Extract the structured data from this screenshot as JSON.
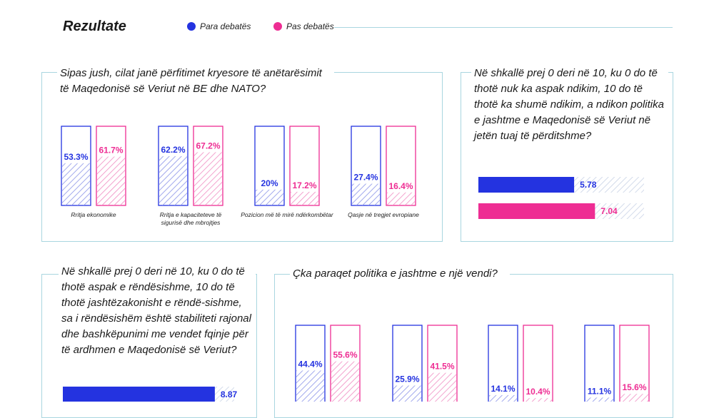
{
  "header": {
    "title": "Rezultate",
    "legend": [
      {
        "label": "Para debatës",
        "color": "#2433e0"
      },
      {
        "label": "Pas debatës",
        "color": "#ee2d93"
      }
    ]
  },
  "panels": {
    "benefits_question": "Sipas jush, cilat janë përfitimet kryesore të anëtarësimit të Maqedonisë së Veriut në BE dhe NATO?",
    "influence_question": "Në shkallë prej 0 deri në 10, ku 0 do të thotë nuk ka aspak ndikim, 10 do të thotë ka shumë ndikim, a ndikon politika e jashtme e Maqedonisë së Veriut në jetën tuaj të përditshme?",
    "stability_question": "Në shkallë prej 0 deri në 10, ku 0 do të thotë aspak e rëndësishme, 10 do të thotë jashtëzakonisht e rëndë-sishme, sa i rëndësishëm është stabiliteti rajonal dhe bashkëpunimi me vendet fqinje për të ardhmen e Maqedonisë së Veriut?",
    "foreign_policy_question": "Çka paraqet politika e jashtme e një vendi?"
  },
  "chart_data": [
    {
      "type": "bar",
      "categories": [
        "Rritja ekonomike",
        "Rritja e kapaciteteve të sigurisë dhe mbrojtjes",
        "Pozicion më të mirë ndërkombëtar",
        "Qasje në tregjet evropiane"
      ],
      "series": [
        {
          "name": "Para debatës",
          "values": [
            53.3,
            62.2,
            20,
            27.4
          ],
          "labels": [
            "53.3%",
            "62.2%",
            "20%",
            "27.4%"
          ],
          "color": "#2433e0"
        },
        {
          "name": "Pas debatës",
          "values": [
            61.7,
            67.2,
            17.2,
            16.4
          ],
          "labels": [
            "61.7%",
            "67.2%",
            "17.2%",
            "16.4%"
          ],
          "color": "#ee2d93"
        }
      ],
      "ylim": [
        0,
        100
      ]
    },
    {
      "type": "bar",
      "orientation": "horizontal",
      "series": [
        {
          "name": "Para debatës",
          "value": 5.78,
          "label": "5.78",
          "color": "#2433e0"
        },
        {
          "name": "Pas debatës",
          "value": 7.04,
          "label": "7.04",
          "color": "#ee2d93"
        }
      ],
      "xlim": [
        0,
        10
      ]
    },
    {
      "type": "bar",
      "orientation": "horizontal",
      "series": [
        {
          "name": "Para debatës",
          "value": 8.87,
          "label": "8.87",
          "color": "#2433e0"
        }
      ],
      "xlim": [
        0,
        10
      ]
    },
    {
      "type": "bar",
      "categories": [
        "",
        "",
        "",
        ""
      ],
      "series": [
        {
          "name": "Para debatës",
          "values": [
            44.4,
            25.9,
            14.1,
            11.1
          ],
          "labels": [
            "44.4%",
            "25.9%",
            "14.1%",
            "11.1%"
          ],
          "color": "#2433e0"
        },
        {
          "name": "Pas debatës",
          "values": [
            55.6,
            41.5,
            10.4,
            15.6
          ],
          "labels": [
            "55.6%",
            "41.5%",
            "10.4%",
            "15.6%"
          ],
          "color": "#ee2d93"
        }
      ],
      "ylim": [
        0,
        100
      ]
    }
  ]
}
